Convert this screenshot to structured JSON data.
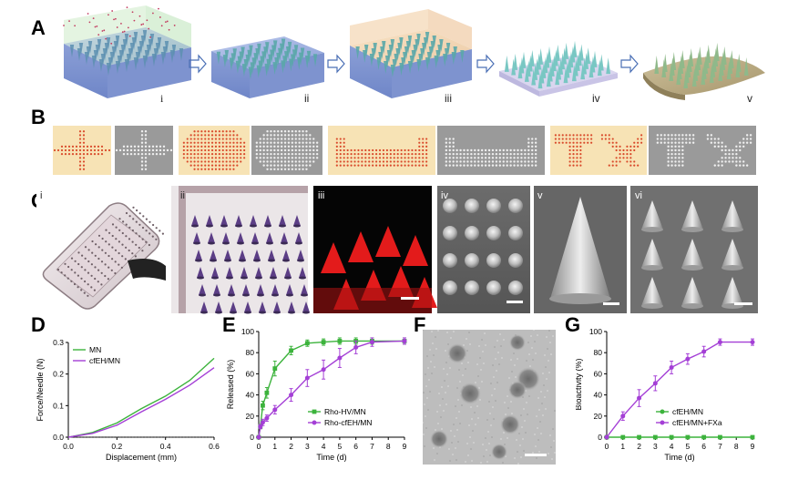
{
  "panels": {
    "A": {
      "label": "A",
      "steps": [
        "i",
        "ii",
        "iii",
        "iv",
        "v"
      ]
    },
    "B": {
      "label": "B"
    },
    "C": {
      "label": "C",
      "sublabels": [
        "i",
        "ii",
        "iii",
        "iv",
        "v",
        "vi"
      ]
    },
    "D": {
      "label": "D"
    },
    "E": {
      "label": "E"
    },
    "F": {
      "label": "F"
    },
    "G": {
      "label": "G"
    }
  },
  "colors": {
    "green": "#3cb33c",
    "purple": "#a43fd6",
    "mold_blue": "#8ea2d8",
    "needle_teal": "#6fc3c7",
    "pattern_bg": "#f7e3b5",
    "pattern_dot": "#d94a2b"
  },
  "chart_data": [
    {
      "panel": "D",
      "type": "line",
      "title": "",
      "xlabel": "Displacement (mm)",
      "ylabel": "Force/Needle (N)",
      "xlim": [
        0,
        0.6
      ],
      "ylim": [
        0,
        0.3
      ],
      "xticks": [
        "0.0",
        "0.2",
        "0.4",
        "0.6"
      ],
      "yticks": [
        "0.0",
        "0.1",
        "0.2",
        "0.3"
      ],
      "legend": [
        "MN",
        "cfEH/MN"
      ],
      "legend_position": "top-left",
      "series": [
        {
          "name": "MN",
          "color": "#3cb33c",
          "x": [
            0,
            0.1,
            0.2,
            0.3,
            0.4,
            0.5,
            0.6
          ],
          "y": [
            0,
            0.015,
            0.045,
            0.09,
            0.13,
            0.18,
            0.25
          ]
        },
        {
          "name": "cfEH/MN",
          "color": "#a43fd6",
          "x": [
            0,
            0.1,
            0.2,
            0.3,
            0.4,
            0.5,
            0.6
          ],
          "y": [
            0,
            0.012,
            0.038,
            0.08,
            0.12,
            0.165,
            0.22
          ]
        }
      ]
    },
    {
      "panel": "E",
      "type": "line",
      "title": "",
      "xlabel": "Time (d)",
      "ylabel": "Released (%)",
      "xlim": [
        0,
        9
      ],
      "ylim": [
        0,
        100
      ],
      "xticks": [
        "0",
        "1",
        "2",
        "3",
        "4",
        "5",
        "6",
        "7",
        "8",
        "9"
      ],
      "yticks": [
        "0",
        "20",
        "40",
        "60",
        "80",
        "100"
      ],
      "legend": [
        "Rho-HV/MN",
        "Rho-cfEH/MN"
      ],
      "legend_position": "bottom-right",
      "series": [
        {
          "name": "Rho-HV/MN",
          "color": "#3cb33c",
          "x": [
            0,
            0.1,
            0.25,
            0.5,
            1,
            2,
            3,
            4,
            5,
            6,
            7,
            9
          ],
          "y": [
            0,
            10,
            30,
            42,
            65,
            82,
            89,
            90,
            91,
            91,
            91,
            91
          ],
          "err": [
            0,
            2,
            4,
            5,
            7,
            4,
            3,
            3,
            3,
            3,
            3,
            3
          ]
        },
        {
          "name": "Rho-cfEH/MN",
          "color": "#a43fd6",
          "x": [
            0,
            0.1,
            0.25,
            0.5,
            1,
            2,
            3,
            4,
            5,
            6,
            7,
            9
          ],
          "y": [
            0,
            10,
            14,
            18,
            26,
            40,
            56,
            64,
            75,
            85,
            90,
            91
          ],
          "err": [
            0,
            2,
            3,
            3,
            4,
            6,
            8,
            9,
            9,
            6,
            4,
            3
          ]
        }
      ]
    },
    {
      "panel": "G",
      "type": "line",
      "title": "",
      "xlabel": "Time (d)",
      "ylabel": "Bioactivity (%)",
      "xlim": [
        0,
        9
      ],
      "ylim": [
        0,
        100
      ],
      "xticks": [
        "0",
        "1",
        "2",
        "3",
        "4",
        "5",
        "6",
        "7",
        "8",
        "9"
      ],
      "yticks": [
        "0",
        "20",
        "40",
        "60",
        "80",
        "100"
      ],
      "legend": [
        "cfEH/MN",
        "cfEH/MN+FXa"
      ],
      "legend_position": "bottom-right",
      "series": [
        {
          "name": "cfEH/MN",
          "color": "#3cb33c",
          "x": [
            0,
            1,
            2,
            3,
            4,
            5,
            6,
            7,
            9
          ],
          "y": [
            0,
            0,
            0,
            0,
            0,
            0,
            0,
            0,
            0
          ],
          "err": [
            0,
            0,
            0,
            0,
            0,
            0,
            0,
            0,
            0
          ]
        },
        {
          "name": "cfEH/MN+FXa",
          "color": "#a43fd6",
          "x": [
            0,
            1,
            2,
            3,
            4,
            5,
            6,
            7,
            9
          ],
          "y": [
            0,
            20,
            37,
            51,
            66,
            74,
            81,
            90,
            90
          ],
          "err": [
            0,
            4,
            8,
            7,
            6,
            5,
            5,
            3,
            3
          ]
        }
      ]
    }
  ]
}
